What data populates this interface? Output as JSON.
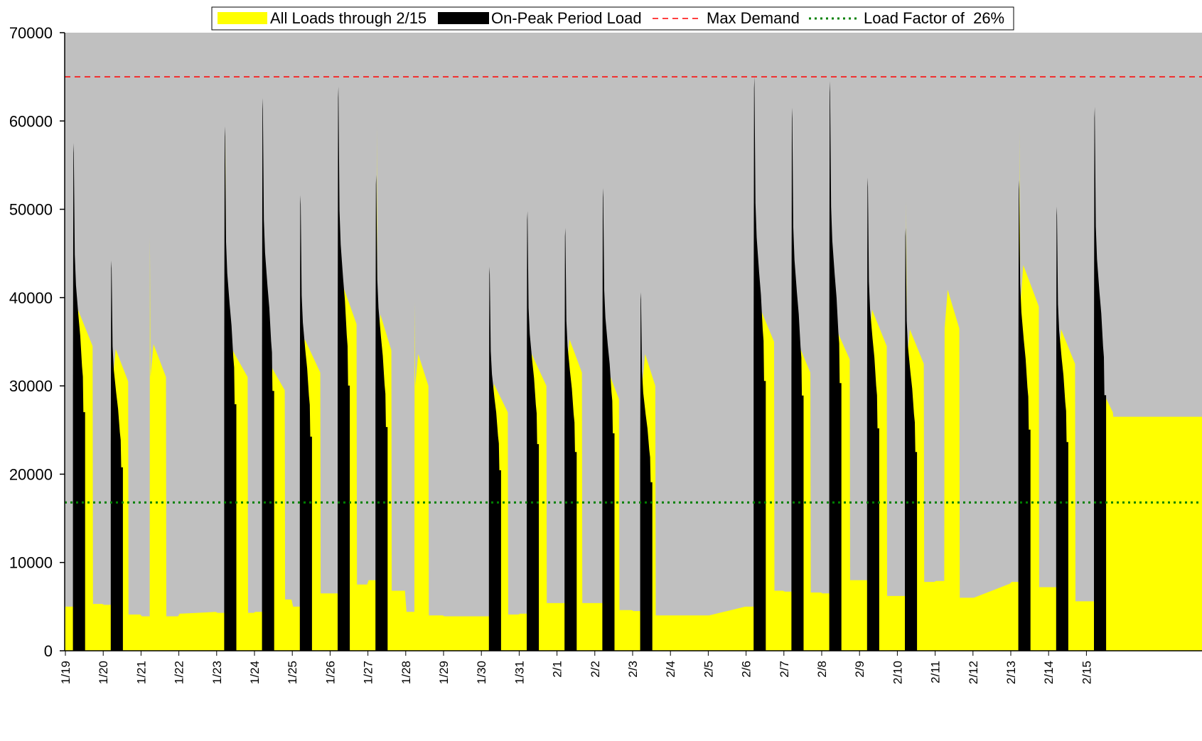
{
  "chart_data": {
    "type": "area",
    "title": "",
    "xlabel": "",
    "ylabel": "",
    "ylim": [
      0,
      70000
    ],
    "yticks": [
      0,
      10000,
      20000,
      30000,
      40000,
      50000,
      60000,
      70000
    ],
    "ytick_labels": [
      "0",
      "10000",
      "20000",
      "30000",
      "40000",
      "50000",
      "60000",
      "70000"
    ],
    "x_day_labels": [
      "1/19",
      "1/20",
      "1/21",
      "1/22",
      "1/23",
      "1/24",
      "1/25",
      "1/26",
      "1/27",
      "1/28",
      "1/29",
      "1/30",
      "1/31",
      "2/1",
      "2/2",
      "2/3",
      "2/4",
      "2/5",
      "2/6",
      "2/7",
      "2/8",
      "2/9",
      "2/10",
      "2/11",
      "2/12",
      "2/13",
      "2/14",
      "2/15"
    ],
    "grid": false,
    "legend_position": "top",
    "background_color": "#C0C0C0",
    "series": [
      {
        "name": "All Loads through 2/15",
        "kind": "area",
        "color": "#FFFF00",
        "note": "daily profile [day, base, early-spike, body-level, body-end, trailing]",
        "days": [
          [
            "1/19",
            5000,
            13000,
            34500,
            0.72,
            5300
          ],
          [
            "1/20",
            5200,
            0,
            30500,
            0.66,
            4100
          ],
          [
            "1/21",
            3900,
            47000,
            31000,
            0.66,
            3900
          ],
          [
            "1/22",
            4200,
            0,
            0,
            0,
            4400
          ],
          [
            "1/23",
            4300,
            59000,
            31000,
            0.82,
            4300
          ],
          [
            "1/24",
            4400,
            0,
            29500,
            0.8,
            5800
          ],
          [
            "1/25",
            5000,
            0,
            31500,
            0.74,
            6500
          ],
          [
            "1/26",
            6500,
            0,
            37000,
            0.7,
            7500
          ],
          [
            "1/27",
            8000,
            59500,
            34000,
            0.62,
            6800
          ],
          [
            "1/28",
            4400,
            39500,
            30000,
            0.6,
            4000
          ],
          [
            "1/29",
            3900,
            0,
            0,
            0,
            3900
          ],
          [
            "1/30",
            3900,
            0,
            27000,
            0.7,
            4100
          ],
          [
            "1/31",
            4200,
            0,
            30000,
            0.72,
            5400
          ],
          [
            "2/1",
            5400,
            0,
            31500,
            0.66,
            5400
          ],
          [
            "2/2",
            5400,
            0,
            28500,
            0.64,
            4600
          ],
          [
            "2/3",
            4500,
            0,
            30000,
            0.6,
            4000
          ],
          [
            "2/4",
            4000,
            0,
            0,
            0,
            4000
          ],
          [
            "2/5",
            4000,
            0,
            0,
            0,
            5000
          ],
          [
            "2/6",
            5000,
            0,
            35000,
            0.74,
            6800
          ],
          [
            "2/7",
            6700,
            0,
            31500,
            0.7,
            6600
          ],
          [
            "2/8",
            6500,
            39500,
            33000,
            0.74,
            8000
          ],
          [
            "2/9",
            8000,
            0,
            34500,
            0.72,
            6200
          ],
          [
            "2/10",
            6200,
            51000,
            32500,
            0.7,
            7800
          ],
          [
            "2/11",
            7900,
            0,
            36500,
            0.64,
            6000
          ],
          [
            "2/12",
            6000,
            0,
            0,
            0,
            7600
          ],
          [
            "2/13",
            7800,
            59000,
            39000,
            0.74,
            7200
          ],
          [
            "2/14",
            7200,
            0,
            32500,
            0.7,
            5600
          ],
          [
            "2/15",
            5600,
            0,
            27000,
            0.7,
            26500
          ]
        ]
      },
      {
        "name": "On-Peak Period Load",
        "kind": "area",
        "color": "#000000",
        "peaks": [
          [
            "1/19",
            57500
          ],
          [
            "1/20",
            44200
          ],
          [
            "1/23",
            59400
          ],
          [
            "1/24",
            62600
          ],
          [
            "1/25",
            51600
          ],
          [
            "1/26",
            63900
          ],
          [
            "1/27",
            53900
          ],
          [
            "1/30",
            43500
          ],
          [
            "1/31",
            49800
          ],
          [
            "2/1",
            47900
          ],
          [
            "2/2",
            52400
          ],
          [
            "2/3",
            40600
          ],
          [
            "2/6",
            65000
          ],
          [
            "2/7",
            61500
          ],
          [
            "2/8",
            64500
          ],
          [
            "2/9",
            53600
          ],
          [
            "2/10",
            47900
          ],
          [
            "2/13",
            53300
          ],
          [
            "2/14",
            50300
          ],
          [
            "2/15",
            61600
          ]
        ]
      },
      {
        "name": "Max Demand",
        "kind": "hline",
        "color": "#FF0000",
        "value": 65000,
        "style": "dashed"
      },
      {
        "name": "Load Factor of  26%",
        "kind": "hline",
        "color": "#008000",
        "value": 16800,
        "style": "dotted"
      }
    ]
  }
}
